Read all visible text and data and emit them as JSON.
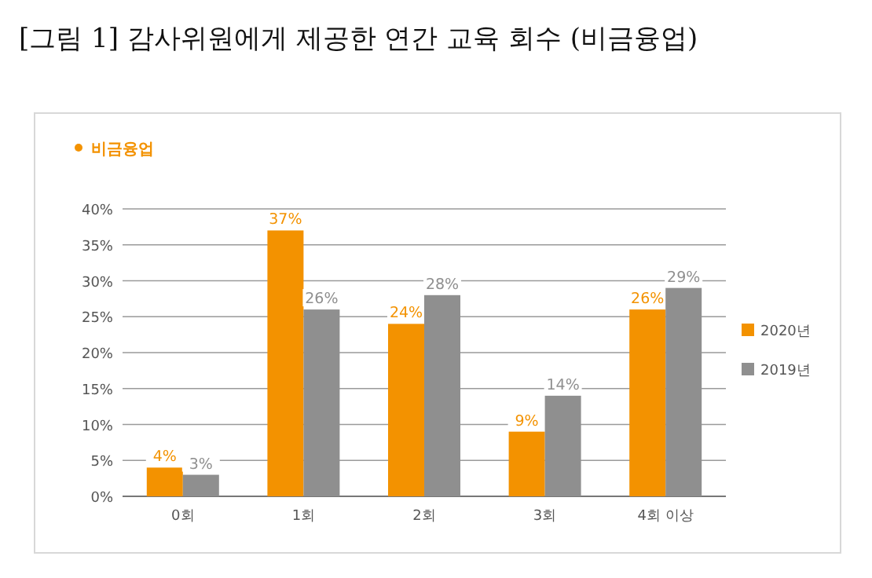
{
  "chart_data": {
    "type": "bar",
    "title": "[그림 1] 감사위원에게 제공한 연간 교육 회수 (비금융업)",
    "subtitle": "비금융업",
    "categories": [
      "0회",
      "1회",
      "2회",
      "3회",
      "4회 이상"
    ],
    "series": [
      {
        "name": "2020년",
        "color": "#f39200",
        "values": [
          4,
          37,
          24,
          9,
          26
        ],
        "value_labels": [
          "4%",
          "37%",
          "24%",
          "9%",
          "26%"
        ]
      },
      {
        "name": "2019년",
        "color": "#8f8f8f",
        "values": [
          3,
          26,
          28,
          14,
          29
        ],
        "value_labels": [
          "3%",
          "26%",
          "28%",
          "14%",
          "29%"
        ]
      }
    ],
    "ylim": [
      0,
      40
    ],
    "yticks": [
      {
        "value": 0,
        "label": "0%"
      },
      {
        "value": 5,
        "label": "5%"
      },
      {
        "value": 10,
        "label": "10%"
      },
      {
        "value": 15,
        "label": "15%"
      },
      {
        "value": 20,
        "label": "20%"
      },
      {
        "value": 25,
        "label": "25%"
      },
      {
        "value": 30,
        "label": "30%"
      },
      {
        "value": 35,
        "label": "35%"
      },
      {
        "value": 40,
        "label": "40%"
      }
    ],
    "grid": "y",
    "legend": "right"
  }
}
